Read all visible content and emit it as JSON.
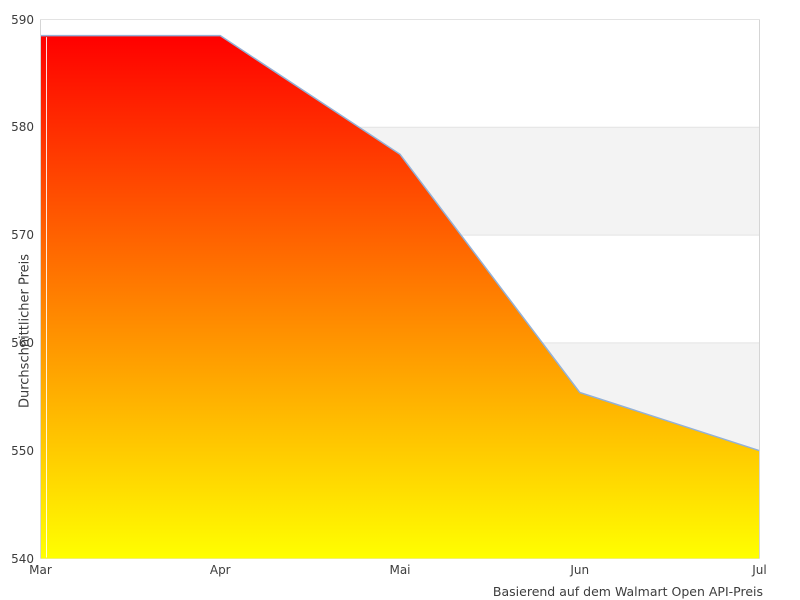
{
  "chart_data": {
    "type": "area",
    "x_labels": [
      "Mar",
      "Apr",
      "Mai",
      "Jun",
      "Jul"
    ],
    "values": [
      588.5,
      588.5,
      577.5,
      555.4,
      550
    ],
    "ylabel": "Durchschnittlicher Preis",
    "caption": "Basierend auf dem Walmart Open API-Preis",
    "ylim": [
      540,
      590
    ],
    "yticks": [
      540,
      550,
      560,
      570,
      580,
      590
    ],
    "legend": "none",
    "grid": "horizontal-bands",
    "colors": {
      "band": "#f3f3f3",
      "gridline": "#e3e3e3",
      "border": "#d5d5d5",
      "axis_text": "#3d3d3d",
      "line": "#93b1d7",
      "fill_gradient_top": "#ff0000",
      "fill_gradient_bottom": "#ffff00",
      "domain_hairline": "#ffffff",
      "background": "#ffffff"
    }
  }
}
